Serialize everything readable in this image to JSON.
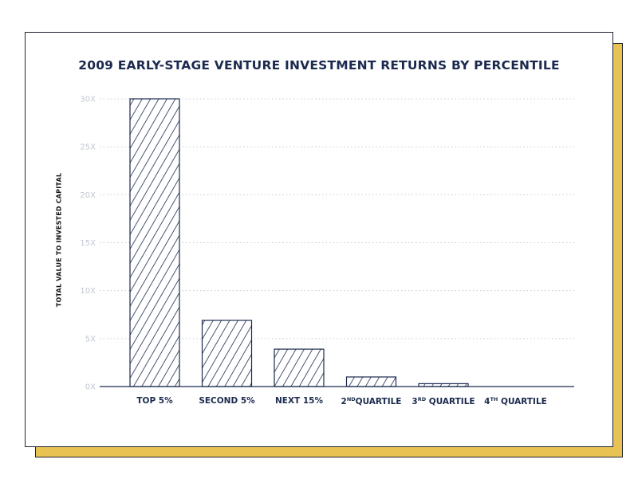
{
  "colors": {
    "navy": "#1B2A4E",
    "accent_yellow": "#E8C253",
    "grid": "#C9CCD6",
    "tick": "#C2C6D2"
  },
  "chart_data": {
    "type": "bar",
    "title": "2009 EARLY-STAGE VENTURE INVESTMENT RETURNS BY PERCENTILE",
    "ylabel": "TOTAL VALUE TO INVESTED CAPITAL",
    "xlabel": "",
    "ylim": [
      0,
      30
    ],
    "yticks": [
      0,
      5,
      10,
      15,
      20,
      25,
      30
    ],
    "ytick_labels": [
      "0X",
      "5X",
      "10X",
      "15X",
      "20X",
      "25X",
      "30X"
    ],
    "grid": true,
    "categories": [
      {
        "pre": "TOP 5%",
        "sup": "",
        "post": ""
      },
      {
        "pre": "SECOND 5%",
        "sup": "",
        "post": ""
      },
      {
        "pre": "NEXT 15%",
        "sup": "",
        "post": ""
      },
      {
        "pre": "2",
        "sup": "ND",
        "post": "QUARTILE"
      },
      {
        "pre": "3",
        "sup": "RD",
        "post": " QUARTILE"
      },
      {
        "pre": "4",
        "sup": "TH",
        "post": " QUARTILE"
      }
    ],
    "values": [
      30,
      6.9,
      3.9,
      1.0,
      0.3,
      0
    ],
    "fill": "diagonal-hatch"
  }
}
